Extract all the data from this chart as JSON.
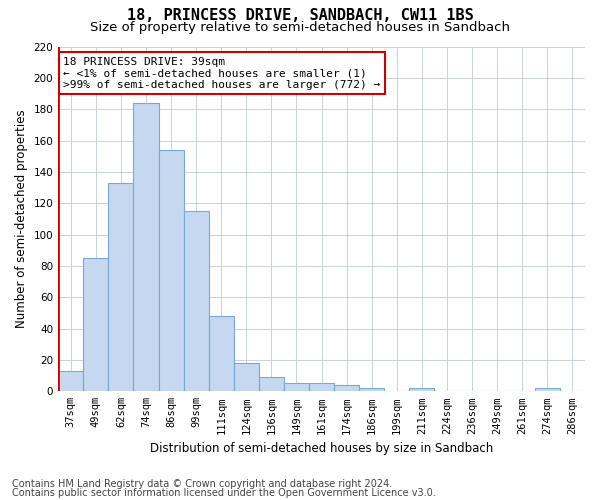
{
  "title": "18, PRINCESS DRIVE, SANDBACH, CW11 1BS",
  "subtitle": "Size of property relative to semi-detached houses in Sandbach",
  "xlabel": "Distribution of semi-detached houses by size in Sandbach",
  "ylabel": "Number of semi-detached properties",
  "categories": [
    "37sqm",
    "49sqm",
    "62sqm",
    "74sqm",
    "86sqm",
    "99sqm",
    "111sqm",
    "124sqm",
    "136sqm",
    "149sqm",
    "161sqm",
    "174sqm",
    "186sqm",
    "199sqm",
    "211sqm",
    "224sqm",
    "236sqm",
    "249sqm",
    "261sqm",
    "274sqm",
    "286sqm"
  ],
  "values": [
    13,
    85,
    133,
    184,
    154,
    115,
    48,
    18,
    9,
    5,
    5,
    4,
    2,
    0,
    2,
    0,
    0,
    0,
    0,
    2,
    0
  ],
  "bar_color": "#c5d8f0",
  "bar_edge_color": "#7aa8d4",
  "red_line_color": "#cc0000",
  "ylim": [
    0,
    220
  ],
  "yticks": [
    0,
    20,
    40,
    60,
    80,
    100,
    120,
    140,
    160,
    180,
    200,
    220
  ],
  "annotation_title": "18 PRINCESS DRIVE: 39sqm",
  "annotation_line1": "← <1% of semi-detached houses are smaller (1)",
  "annotation_line2": ">99% of semi-detached houses are larger (772) →",
  "annotation_box_color": "#ffffff",
  "annotation_box_edge_color": "#cc0000",
  "footer_line1": "Contains HM Land Registry data © Crown copyright and database right 2024.",
  "footer_line2": "Contains public sector information licensed under the Open Government Licence v3.0.",
  "background_color": "#ffffff",
  "grid_color": "#c0ccd8",
  "title_fontsize": 11,
  "subtitle_fontsize": 9.5,
  "axis_label_fontsize": 8.5,
  "tick_fontsize": 7.5,
  "annotation_fontsize": 8,
  "footer_fontsize": 7
}
